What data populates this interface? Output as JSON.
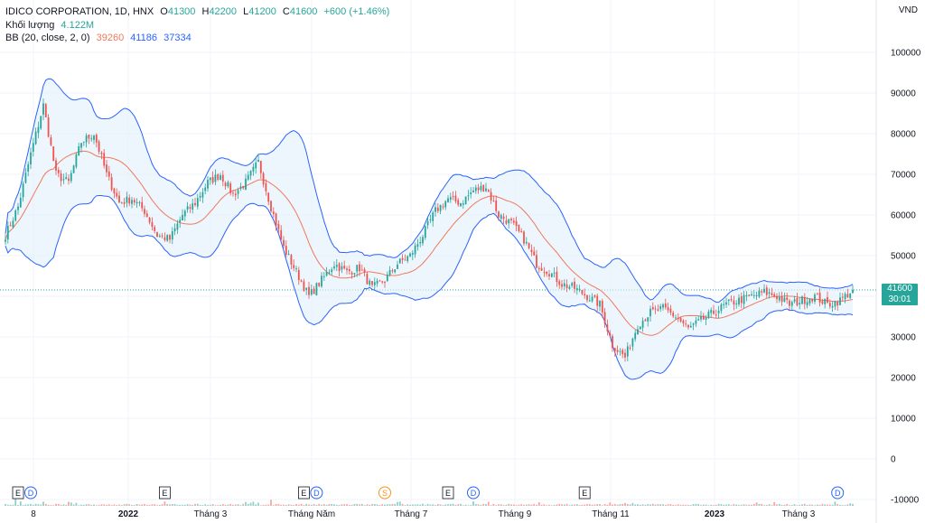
{
  "header": {
    "symbol": "IDICO CORPORATION, 1D, HNX",
    "open_label": "O",
    "open": "41300",
    "high_label": "H",
    "high": "42200",
    "low_label": "L",
    "low": "41200",
    "close_label": "C",
    "close": "41600",
    "change": "+600 (+1.46%)",
    "volume_label": "Khối lượng",
    "volume_value": "4.122M",
    "bb_label": "BB (20, close, 2, 0)",
    "bb_basis": "39260",
    "bb_upper": "41186",
    "bb_lower": "37334"
  },
  "currency": "VND",
  "price_tag": {
    "price": "41600",
    "countdown": "30:01"
  },
  "colors": {
    "up": "#26a69a",
    "down": "#ef5350",
    "basis": "#f0795a",
    "band": "#2962ff",
    "band_fill": "#e3f0fb"
  },
  "chart_data": {
    "type": "candlestick",
    "title": "IDICO CORPORATION, 1D, HNX",
    "price_axis": {
      "ticks": [
        100000,
        90000,
        80000,
        70000,
        60000,
        50000,
        40000,
        30000,
        20000,
        10000,
        0,
        -10000
      ],
      "labels": [
        "100000",
        "90000",
        "80000",
        "70000",
        "60000",
        "50000",
        "40000",
        "30000",
        "20000",
        "10000",
        "0",
        "-10000"
      ],
      "ylim": [
        -10000,
        110000
      ]
    },
    "time_axis": {
      "labels": [
        "8",
        "2022",
        "Tháng 3",
        "Tháng Năm",
        "Tháng 7",
        "Tháng 9",
        "Tháng 11",
        "2023",
        "Tháng 3"
      ],
      "bold": [
        "2022",
        "2023"
      ]
    },
    "price_path_keypoints": [
      [
        0,
        55000
      ],
      [
        5,
        62000
      ],
      [
        10,
        75000
      ],
      [
        15,
        87000
      ],
      [
        20,
        70000
      ],
      [
        25,
        68000
      ],
      [
        30,
        78000
      ],
      [
        35,
        80000
      ],
      [
        40,
        70000
      ],
      [
        45,
        63000
      ],
      [
        50,
        64000
      ],
      [
        55,
        61000
      ],
      [
        60,
        55000
      ],
      [
        65,
        54000
      ],
      [
        70,
        60000
      ],
      [
        75,
        63000
      ],
      [
        80,
        68000
      ],
      [
        85,
        70000
      ],
      [
        90,
        65000
      ],
      [
        95,
        68000
      ],
      [
        100,
        73000
      ],
      [
        105,
        62000
      ],
      [
        110,
        52000
      ],
      [
        115,
        46000
      ],
      [
        120,
        40000
      ],
      [
        125,
        44000
      ],
      [
        130,
        48000
      ],
      [
        135,
        46000
      ],
      [
        140,
        47000
      ],
      [
        145,
        42000
      ],
      [
        150,
        44000
      ],
      [
        155,
        48000
      ],
      [
        160,
        50000
      ],
      [
        165,
        55000
      ],
      [
        170,
        61000
      ],
      [
        175,
        64000
      ],
      [
        180,
        63000
      ],
      [
        185,
        66000
      ],
      [
        190,
        67000
      ],
      [
        195,
        60000
      ],
      [
        200,
        58000
      ],
      [
        205,
        54000
      ],
      [
        210,
        48000
      ],
      [
        215,
        46000
      ],
      [
        220,
        43000
      ],
      [
        225,
        42000
      ],
      [
        230,
        40000
      ],
      [
        235,
        38000
      ],
      [
        240,
        28000
      ],
      [
        245,
        25000
      ],
      [
        250,
        33000
      ],
      [
        255,
        36000
      ],
      [
        260,
        37000
      ],
      [
        265,
        35000
      ],
      [
        270,
        32000
      ],
      [
        275,
        34000
      ],
      [
        280,
        36000
      ],
      [
        285,
        38000
      ],
      [
        290,
        39000
      ],
      [
        295,
        40000
      ],
      [
        300,
        41000
      ],
      [
        305,
        40000
      ],
      [
        310,
        38000
      ],
      [
        315,
        39000
      ],
      [
        320,
        40000
      ],
      [
        325,
        38000
      ],
      [
        330,
        39000
      ],
      [
        335,
        41600
      ]
    ],
    "last_price": 41600,
    "bollinger": {
      "length": 20,
      "source": "close",
      "mult": 2,
      "offset": 0,
      "basis": 39260,
      "upper": 41186,
      "lower": 37334
    },
    "volume": {
      "last": "4.122M",
      "spike_days": [
        4,
        105,
        165,
        245,
        248
      ],
      "spike_values": [
        20000000,
        15000000,
        5000000,
        7000000,
        7200000
      ]
    },
    "events": [
      {
        "type": "E",
        "label": "E",
        "day": 5
      },
      {
        "type": "D",
        "label": "D",
        "day": 10
      },
      {
        "type": "E",
        "label": "E",
        "day": 63
      },
      {
        "type": "E",
        "label": "E",
        "day": 118
      },
      {
        "type": "D",
        "label": "D",
        "day": 123
      },
      {
        "type": "S",
        "label": "S",
        "day": 150
      },
      {
        "type": "E",
        "label": "E",
        "day": 175
      },
      {
        "type": "D",
        "label": "D",
        "day": 185
      },
      {
        "type": "E",
        "label": "E",
        "day": 229
      },
      {
        "type": "D",
        "label": "D",
        "day": 329
      }
    ]
  }
}
